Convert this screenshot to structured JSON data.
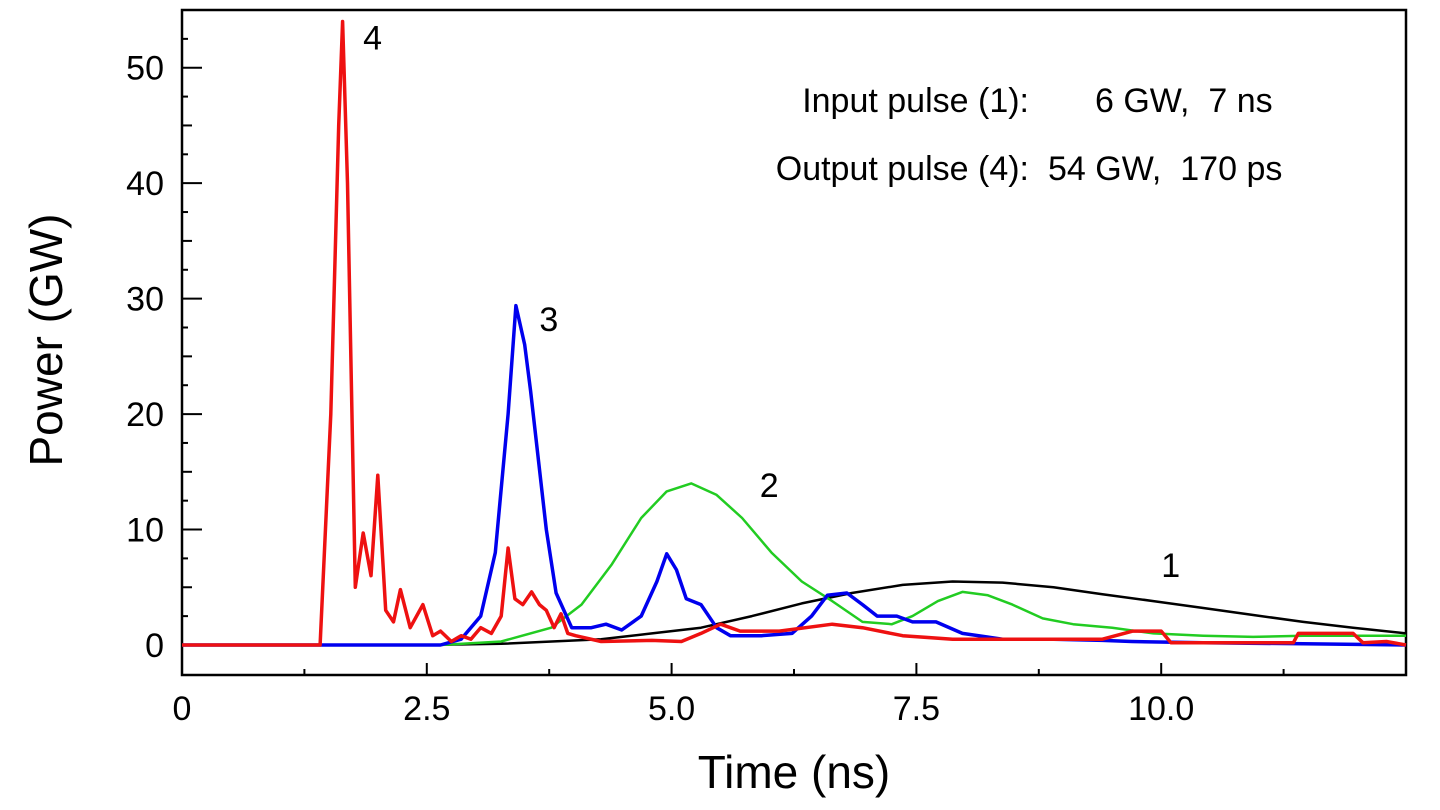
{
  "chart_data": {
    "type": "line",
    "title": "",
    "xlabel": "Time (ns)",
    "ylabel": "Power (GW)",
    "xlim": [
      0,
      12.5
    ],
    "ylim": [
      -2.6,
      55
    ],
    "xticks": [
      0,
      2.5,
      5.0,
      7.5,
      10.0
    ],
    "xtick_labels": [
      "0",
      "2.5",
      "5.0",
      "7.5",
      "10.0"
    ],
    "yticks": [
      0,
      10,
      20,
      30,
      40,
      50
    ],
    "ytick_labels": [
      "0",
      "10",
      "20",
      "30",
      "40",
      "50"
    ],
    "grid": false,
    "info_lines": [
      {
        "label": "Input pulse (1):",
        "value": "6 GW,  7 ns"
      },
      {
        "label": "Output pulse (4):",
        "value": "54 GW,  170 ps"
      }
    ],
    "series": [
      {
        "name": "1",
        "color": "#000000",
        "x": [
          0,
          2.5,
          3.26,
          4.28,
          4.8,
          5.3,
          5.82,
          6.33,
          6.84,
          7.36,
          7.87,
          8.38,
          8.9,
          9.4,
          9.92,
          10.43,
          10.94,
          11.45,
          11.96,
          12.5
        ],
        "y": [
          0,
          0,
          0.1,
          0.5,
          1.0,
          1.5,
          2.5,
          3.6,
          4.5,
          5.2,
          5.5,
          5.4,
          5.0,
          4.4,
          3.8,
          3.2,
          2.6,
          2.0,
          1.5,
          1.0
        ]
      },
      {
        "name": "2",
        "color": "#22cc22",
        "x": [
          0,
          2.64,
          3.26,
          3.77,
          4.08,
          4.39,
          4.69,
          4.95,
          5.2,
          5.46,
          5.72,
          6.02,
          6.33,
          6.64,
          6.95,
          7.25,
          7.46,
          7.72,
          7.97,
          8.23,
          8.48,
          8.79,
          9.1,
          9.5,
          9.92,
          10.43,
          10.94,
          11.45,
          11.96,
          12.5
        ],
        "y": [
          0,
          0,
          0.3,
          1.5,
          3.5,
          7,
          11,
          13.3,
          14,
          13,
          11,
          8,
          5.5,
          3.8,
          2.0,
          1.8,
          2.5,
          3.8,
          4.6,
          4.3,
          3.5,
          2.3,
          1.8,
          1.5,
          1.0,
          0.8,
          0.7,
          0.8,
          0.8,
          0.8
        ]
      },
      {
        "name": "3",
        "color": "#0000ee",
        "x": [
          0,
          2.64,
          2.85,
          3.05,
          3.2,
          3.33,
          3.41,
          3.5,
          3.56,
          3.72,
          3.82,
          3.98,
          4.18,
          4.33,
          4.49,
          4.69,
          4.85,
          4.95,
          5.05,
          5.15,
          5.3,
          5.46,
          5.6,
          5.92,
          6.23,
          6.43,
          6.59,
          6.79,
          6.95,
          7.1,
          7.3,
          7.46,
          7.7,
          7.97,
          8.38,
          8.9,
          9.4,
          9.7,
          10.43,
          11.45,
          12.5
        ],
        "y": [
          0,
          0,
          0.5,
          2.5,
          8,
          20,
          29.4,
          26,
          22,
          10,
          4.5,
          1.5,
          1.5,
          1.8,
          1.3,
          2.5,
          5.5,
          7.9,
          6.5,
          4,
          3.5,
          1.5,
          0.8,
          0.8,
          1.0,
          2.5,
          4.3,
          4.5,
          3.5,
          2.5,
          2.5,
          2.0,
          2.0,
          1.0,
          0.5,
          0.5,
          0.4,
          0.3,
          0.2,
          0.1,
          0
        ]
      },
      {
        "name": "4",
        "color": "#ee1111",
        "x": [
          0,
          1.41,
          1.52,
          1.6,
          1.64,
          1.69,
          1.77,
          1.85,
          1.93,
          2.0,
          2.08,
          2.16,
          2.23,
          2.33,
          2.46,
          2.56,
          2.64,
          2.75,
          2.85,
          2.95,
          3.05,
          3.16,
          3.26,
          3.33,
          3.4,
          3.48,
          3.57,
          3.65,
          3.72,
          3.8,
          3.87,
          3.94,
          4.02,
          4.28,
          4.8,
          5.1,
          5.3,
          5.5,
          5.7,
          6.1,
          6.64,
          6.95,
          7.36,
          7.87,
          8.4,
          8.9,
          9.4,
          9.71,
          10.0,
          10.1,
          11.35,
          11.4,
          11.96,
          12.06,
          12.3,
          12.5
        ],
        "y": [
          0,
          0,
          20,
          45,
          54,
          40,
          5,
          9.7,
          6,
          14.7,
          3,
          2,
          4.8,
          1.5,
          3.5,
          0.8,
          1.2,
          0.3,
          0.8,
          0.5,
          1.5,
          1.0,
          2.5,
          8.4,
          4,
          3.5,
          4.6,
          3.5,
          3.0,
          1.5,
          2.7,
          1.0,
          0.8,
          0.3,
          0.4,
          0.3,
          1.0,
          1.8,
          1.2,
          1.2,
          1.8,
          1.5,
          0.8,
          0.5,
          0.5,
          0.5,
          0.5,
          1.2,
          1.2,
          0.2,
          0.2,
          1.0,
          1.0,
          0.2,
          0.3,
          0
        ]
      }
    ],
    "annotations": [
      {
        "text": "1",
        "x": 10.0,
        "y": 5.9
      },
      {
        "text": "2",
        "x": 5.9,
        "y": 12.8
      },
      {
        "text": "3",
        "x": 3.65,
        "y": 27.2
      },
      {
        "text": "4",
        "x": 1.85,
        "y": 51.6
      }
    ]
  }
}
